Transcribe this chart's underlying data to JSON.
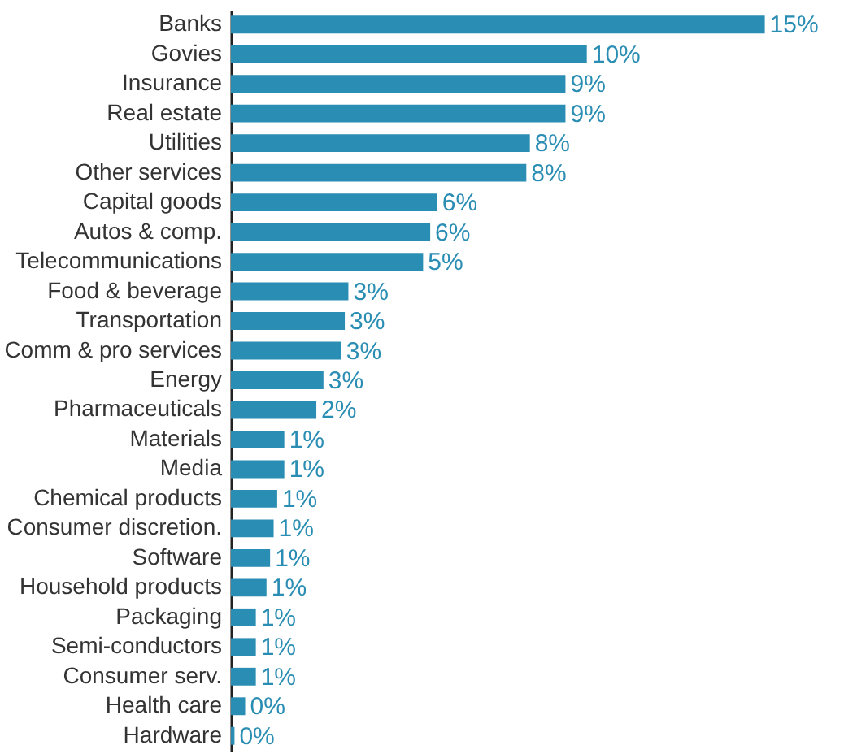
{
  "chart_data": {
    "type": "bar",
    "orientation": "horizontal",
    "color": "#2a8db3",
    "categories": [
      "Banks",
      "Govies",
      "Insurance",
      "Real estate",
      "Utilities",
      "Other services",
      "Capital goods",
      "Autos & comp.",
      "Telecommunications",
      "Food & beverage",
      "Transportation",
      "Comm & pro services",
      "Energy",
      "Pharmaceuticals",
      "Materials",
      "Media",
      "Chemical products",
      "Consumer discretion.",
      "Software",
      "Household products",
      "Packaging",
      "Semi-conductors",
      "Consumer serv.",
      "Health care",
      "Hardware"
    ],
    "values": [
      15.0,
      10.0,
      9.4,
      9.4,
      8.4,
      8.3,
      5.8,
      5.6,
      5.4,
      3.3,
      3.2,
      3.1,
      2.6,
      2.4,
      1.5,
      1.5,
      1.3,
      1.2,
      1.1,
      1.0,
      0.7,
      0.7,
      0.7,
      0.4,
      0.1
    ],
    "value_labels": [
      "15%",
      "10%",
      "9%",
      "9%",
      "8%",
      "8%",
      "6%",
      "6%",
      "5%",
      "3%",
      "3%",
      "3%",
      "3%",
      "2%",
      "1%",
      "1%",
      "1%",
      "1%",
      "1%",
      "1%",
      "1%",
      "1%",
      "1%",
      "0%",
      "0%"
    ],
    "xlim": [
      0,
      17.5
    ]
  }
}
